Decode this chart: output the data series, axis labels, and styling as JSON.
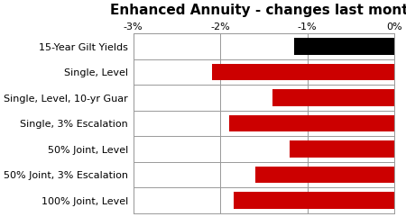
{
  "title": "Enhanced Annuity - changes last month",
  "categories": [
    "15-Year Gilt Yields",
    "Single, Level",
    "Single, Level, 10-yr Guar",
    "Single, 3% Escalation",
    "50% Joint, Level",
    "50% Joint, 3% Escalation",
    "100% Joint, Level"
  ],
  "values": [
    -1.15,
    -2.1,
    -1.4,
    -1.9,
    -1.2,
    -1.6,
    -1.85
  ],
  "colors": [
    "#000000",
    "#cc0000",
    "#cc0000",
    "#cc0000",
    "#cc0000",
    "#cc0000",
    "#cc0000"
  ],
  "xlim": [
    -3,
    0
  ],
  "xticks": [
    -3,
    -2,
    -1,
    0
  ],
  "xticklabels": [
    "-3%",
    "-2%",
    "-1%",
    "0%"
  ],
  "title_fontsize": 11,
  "tick_fontsize": 8,
  "label_fontsize": 8,
  "bar_height": 0.65,
  "background_color": "#ffffff",
  "grid_color": "#999999",
  "spine_color": "#999999"
}
